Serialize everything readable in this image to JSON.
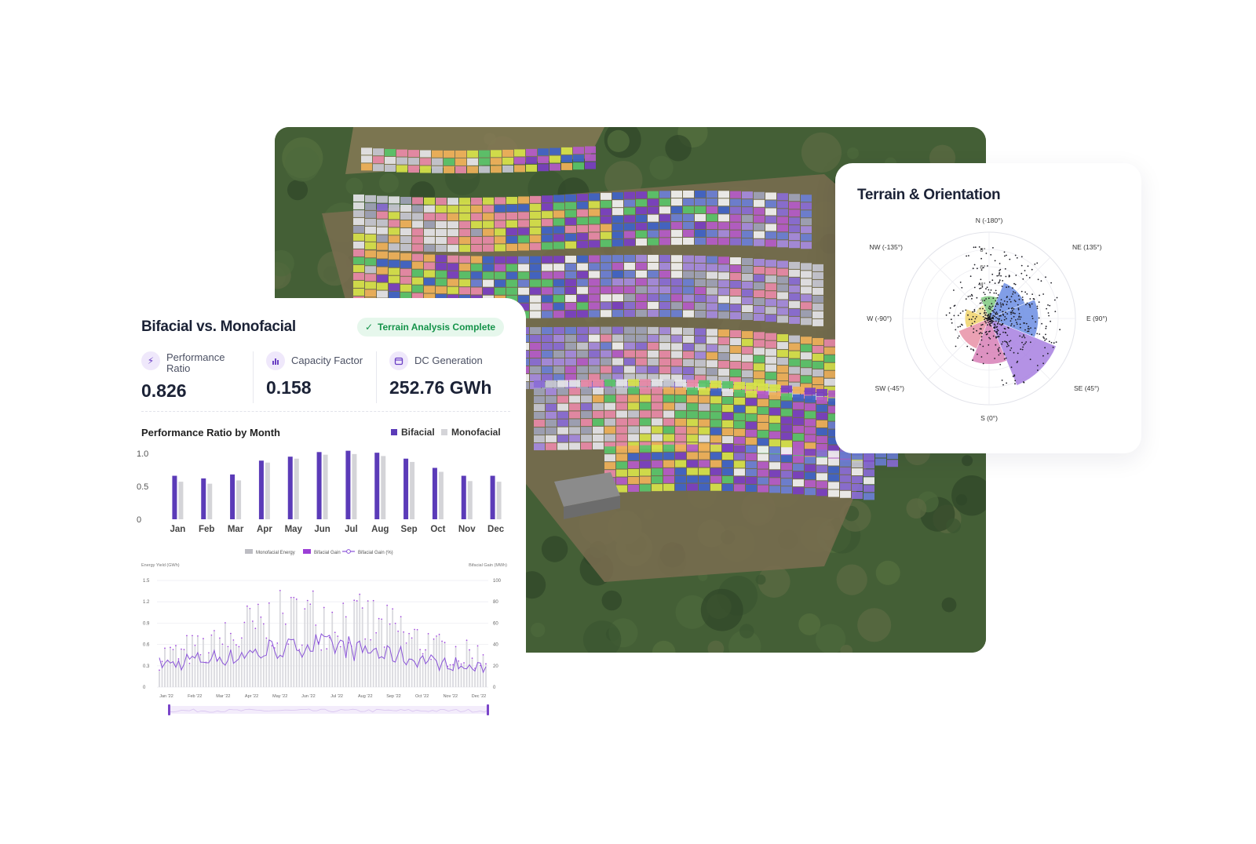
{
  "left_card": {
    "title": "Bifacial vs. Monofacial",
    "badge": "Terrain Analysis Complete",
    "metrics": [
      {
        "label": "Performance Ratio",
        "value": "0.826",
        "icon": "bolt-icon"
      },
      {
        "label": "Capacity Factor",
        "value": "0.158",
        "icon": "bar-chart-icon"
      },
      {
        "label": "DC Generation",
        "value": "252.76 GWh",
        "icon": "calendar-icon"
      }
    ]
  },
  "right_card": {
    "title": "Terrain & Orientation"
  },
  "colors": {
    "bifacial": "#5b3bb8",
    "monofacial": "#d4d4d8",
    "accent_bg": "#efe8fb",
    "success": "#15934a"
  },
  "chart_data": [
    {
      "type": "bar",
      "title": "Performance Ratio by Month",
      "categories": [
        "Jan",
        "Feb",
        "Mar",
        "Apr",
        "May",
        "Jun",
        "Jul",
        "Aug",
        "Sep",
        "Oct",
        "Nov",
        "Dec"
      ],
      "series": [
        {
          "name": "Bifacial",
          "values": [
            0.66,
            0.62,
            0.68,
            0.89,
            0.95,
            1.02,
            1.04,
            1.01,
            0.92,
            0.78,
            0.66,
            0.66
          ]
        },
        {
          "name": "Monofacial",
          "values": [
            0.57,
            0.54,
            0.59,
            0.86,
            0.92,
            0.98,
            0.99,
            0.96,
            0.87,
            0.72,
            0.58,
            0.57
          ]
        }
      ],
      "yticks": [
        "1.0",
        "0.5",
        "0"
      ],
      "ylim": [
        0,
        1.0
      ]
    },
    {
      "type": "line",
      "legend": [
        "Monofacial Energy",
        "Bifacial Gain",
        "Bifacial Gain (%)"
      ],
      "ylabel_left": "Energy Yield (GWh)",
      "ylabel_right": "Bifacial Gain (MWh)",
      "yticks_left": [
        "1.5",
        "1.2",
        "0.9",
        "0.6",
        "0.3",
        "0"
      ],
      "yticks_right": [
        "100",
        "80",
        "60",
        "40",
        "20",
        "0"
      ],
      "xticks": [
        "Jan '22",
        "Feb '22",
        "Mar '22",
        "Apr '22",
        "May '22",
        "Jun '22",
        "Jul '22",
        "Aug '22",
        "Sep '22",
        "Oct '22",
        "Nov '22",
        "Dec '22"
      ],
      "ylim_left": [
        0,
        1.5
      ],
      "ylim_right": [
        0,
        100
      ],
      "monthly_peak_gwh": [
        0.65,
        0.75,
        0.95,
        1.2,
        1.35,
        1.45,
        1.45,
        1.3,
        1.15,
        0.95,
        0.75,
        0.65
      ],
      "monthly_gain_pct": [
        22,
        26,
        28,
        32,
        36,
        40,
        38,
        34,
        30,
        26,
        22,
        18
      ]
    },
    {
      "type": "polar",
      "direction_labels": [
        "N (-180°)",
        "NE (135°)",
        "E (90°)",
        "SE (45°)",
        "S (0°)",
        "SW (-45°)",
        "W (-90°)",
        "NW (-135°)"
      ],
      "ring_labels": [
        "8°",
        "6°",
        "4°",
        "2°"
      ],
      "sectors": [
        {
          "direction": "N",
          "radius_deg": 2.6,
          "color": "#7fc97f"
        },
        {
          "direction": "NE",
          "radius_deg": 4.5,
          "color": "#6b8de3"
        },
        {
          "direction": "E",
          "radius_deg": 5.7,
          "color": "#6b8de3"
        },
        {
          "direction": "SE",
          "radius_deg": 8.4,
          "color": "#a77fe0"
        },
        {
          "direction": "S",
          "radius_deg": 5.3,
          "color": "#d77fb6"
        },
        {
          "direction": "SW",
          "radius_deg": 3.8,
          "color": "#e891a6"
        },
        {
          "direction": "W",
          "radius_deg": 2.8,
          "color": "#f1d36b"
        },
        {
          "direction": "NW",
          "radius_deg": 1.7,
          "color": "#f0e39b"
        }
      ]
    }
  ]
}
